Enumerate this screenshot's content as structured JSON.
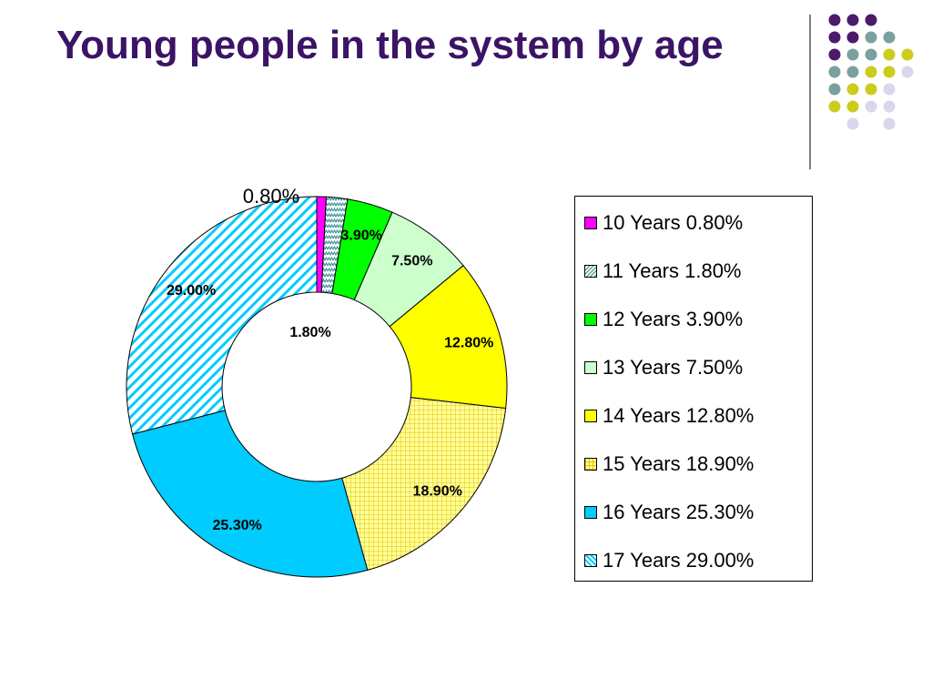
{
  "slide": {
    "title": "Young people in the system by age"
  },
  "decoration": {
    "dot_colors": {
      "purple": "#4b1a6a",
      "teal": "#7aa0a0",
      "olive": "#cccc1e",
      "lavender": "#d8d8ec"
    }
  },
  "chart_data": {
    "type": "pie",
    "variant": "doughnut",
    "title": "",
    "categories": [
      "10 Years",
      "11 Years",
      "12 Years",
      "13 Years",
      "14 Years",
      "15 Years",
      "16 Years",
      "17 Years"
    ],
    "values": [
      0.8,
      1.8,
      3.9,
      7.5,
      12.8,
      18.9,
      25.3,
      29.0
    ],
    "data_labels": [
      "0.80%",
      "1.80%",
      "3.90%",
      "7.50%",
      "12.80%",
      "18.90%",
      "25.30%",
      "29.00%"
    ],
    "legend_entries": [
      "10 Years 0.80%",
      "11 Years 1.80%",
      "12 Years 3.90%",
      "13 Years 7.50%",
      "14 Years 12.80%",
      "15 Years 18.90%",
      "16 Years 25.30%",
      "17 Years 29.00%"
    ],
    "colors": [
      "#ff00ff",
      "#9fd8d8",
      "#00ff00",
      "#ccffcc",
      "#ffff00",
      "#ffff99",
      "#00ccff",
      "#00ccff"
    ],
    "fill_patterns": [
      "solid",
      "zigzag",
      "solid",
      "solid",
      "solid",
      "grid",
      "solid",
      "diagonal"
    ],
    "legend_position": "right",
    "start_angle_deg": 0,
    "direction": "clockwise"
  }
}
